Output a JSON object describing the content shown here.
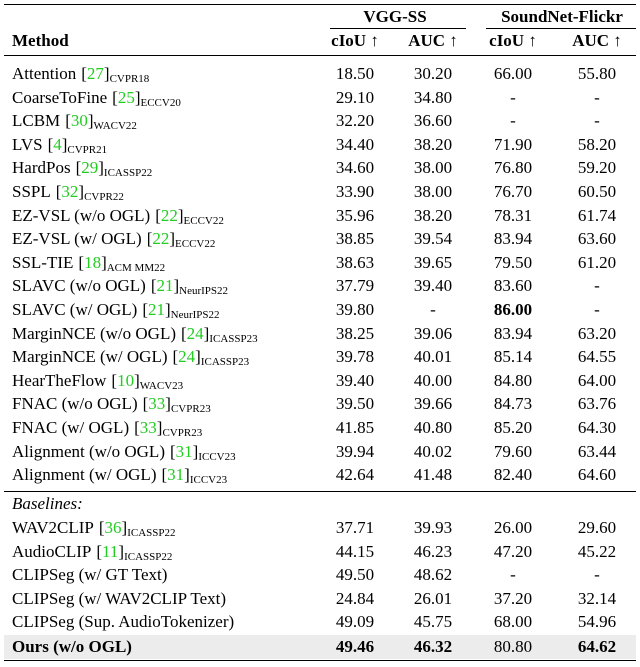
{
  "table": {
    "group_headers": [
      "VGG-SS",
      "SoundNet-Flickr"
    ],
    "columns": [
      "Method",
      "cIoU ↑",
      "AUC ↑",
      "cIoU ↑",
      "AUC ↑"
    ],
    "sections": [
      {
        "rows": [
          {
            "method": "Attention",
            "ref": "[27]",
            "venue": "CVPR18",
            "cells": [
              "18.50",
              "30.20",
              "66.00",
              "55.80"
            ]
          },
          {
            "method": "CoarseToFine",
            "ref": "[25]",
            "venue": "ECCV20",
            "cells": [
              "29.10",
              "34.80",
              "-",
              "-"
            ]
          },
          {
            "method": "LCBM",
            "ref": "[30]",
            "venue": "WACV22",
            "cells": [
              "32.20",
              "36.60",
              "-",
              "-"
            ]
          },
          {
            "method": "LVS",
            "ref": "[4]",
            "venue": "CVPR21",
            "cells": [
              "34.40",
              "38.20",
              "71.90",
              "58.20"
            ]
          },
          {
            "method": "HardPos",
            "ref": "[29]",
            "venue": "ICASSP22",
            "cells": [
              "34.60",
              "38.00",
              "76.80",
              "59.20"
            ]
          },
          {
            "method": "SSPL",
            "ref": "[32]",
            "venue": "CVPR22",
            "cells": [
              "33.90",
              "38.00",
              "76.70",
              "60.50"
            ]
          },
          {
            "method": "EZ-VSL (w/o OGL)",
            "ref": "[22]",
            "venue": "ECCV22",
            "cells": [
              "35.96",
              "38.20",
              "78.31",
              "61.74"
            ]
          },
          {
            "method": "EZ-VSL (w/ OGL)",
            "ref": "[22]",
            "venue": "ECCV22",
            "cells": [
              "38.85",
              "39.54",
              "83.94",
              "63.60"
            ]
          },
          {
            "method": "SSL-TIE",
            "ref": "[18]",
            "venue": "ACM MM22",
            "cells": [
              "38.63",
              "39.65",
              "79.50",
              "61.20"
            ]
          },
          {
            "method": "SLAVC (w/o OGL)",
            "ref": "[21]",
            "venue": "NeurIPS22",
            "cells": [
              "37.79",
              "39.40",
              "83.60",
              "-"
            ]
          },
          {
            "method": "SLAVC (w/ OGL)",
            "ref": "[21]",
            "venue": "NeurIPS22",
            "cells": [
              "39.80",
              "-",
              "86.00",
              "-"
            ],
            "bold": [
              2
            ]
          },
          {
            "method": "MarginNCE (w/o OGL)",
            "ref": "[24]",
            "venue": "ICASSP23",
            "cells": [
              "38.25",
              "39.06",
              "83.94",
              "63.20"
            ]
          },
          {
            "method": "MarginNCE (w/ OGL)",
            "ref": "[24]",
            "venue": "ICASSP23",
            "cells": [
              "39.78",
              "40.01",
              "85.14",
              "64.55"
            ]
          },
          {
            "method": "HearTheFlow",
            "ref": "[10]",
            "venue": "WACV23",
            "cells": [
              "39.40",
              "40.00",
              "84.80",
              "64.00"
            ]
          },
          {
            "method": "FNAC (w/o OGL)",
            "ref": "[33]",
            "venue": "CVPR23",
            "cells": [
              "39.50",
              "39.66",
              "84.73",
              "63.76"
            ]
          },
          {
            "method": "FNAC (w/ OGL)",
            "ref": "[33]",
            "venue": "CVPR23",
            "cells": [
              "41.85",
              "40.80",
              "85.20",
              "64.30"
            ]
          },
          {
            "method": "Alignment (w/o OGL)",
            "ref": "[31]",
            "venue": "ICCV23",
            "cells": [
              "39.94",
              "40.02",
              "79.60",
              "63.44"
            ]
          },
          {
            "method": "Alignment (w/ OGL)",
            "ref": "[31]",
            "venue": "ICCV23",
            "cells": [
              "42.64",
              "41.48",
              "82.40",
              "64.60"
            ]
          }
        ]
      },
      {
        "label": "Baselines:",
        "rows": [
          {
            "method": "WAV2CLIP",
            "ref": "[36]",
            "venue": "ICASSP22",
            "cells": [
              "37.71",
              "39.93",
              "26.00",
              "29.60"
            ]
          },
          {
            "method": "AudioCLIP",
            "ref": "[11]",
            "venue": "ICASSP22",
            "cells": [
              "44.15",
              "46.23",
              "47.20",
              "45.22"
            ]
          },
          {
            "method": "CLIPSeg (w/ GT Text)",
            "cells": [
              "49.50",
              "48.62",
              "-",
              "-"
            ]
          },
          {
            "method": "CLIPSeg (w/ WAV2CLIP Text)",
            "cells": [
              "24.84",
              "26.01",
              "37.20",
              "32.14"
            ]
          },
          {
            "method": "CLIPSeg (Sup. AudioTokenizer)",
            "cells": [
              "49.09",
              "45.75",
              "68.00",
              "54.96"
            ]
          }
        ]
      },
      {
        "highlight": true,
        "rows": [
          {
            "method": "Ours (w/o OGL)",
            "cells": [
              "49.46",
              "46.32",
              "80.80",
              "64.62"
            ],
            "bold": [
              0,
              1,
              3
            ],
            "method_bold": true
          }
        ]
      }
    ]
  }
}
